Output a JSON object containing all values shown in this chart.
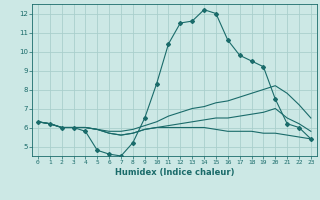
{
  "xlabel": "Humidex (Indice chaleur)",
  "ylabel": "",
  "xlim": [
    -0.5,
    23.5
  ],
  "ylim": [
    4.5,
    12.5
  ],
  "xticks": [
    0,
    1,
    2,
    3,
    4,
    5,
    6,
    7,
    8,
    9,
    10,
    11,
    12,
    13,
    14,
    15,
    16,
    17,
    18,
    19,
    20,
    21,
    22,
    23
  ],
  "yticks": [
    5,
    6,
    7,
    8,
    9,
    10,
    11,
    12
  ],
  "bg_color": "#cce8e5",
  "grid_color": "#aacfcc",
  "line_color": "#1a6b6a",
  "curves": [
    [
      6.3,
      6.2,
      6.0,
      6.0,
      5.8,
      4.8,
      4.6,
      4.5,
      5.2,
      6.5,
      8.3,
      10.4,
      11.5,
      11.6,
      12.2,
      12.0,
      10.6,
      9.8,
      9.5,
      9.2,
      7.5,
      6.2,
      6.0,
      5.4
    ],
    [
      6.3,
      6.2,
      6.0,
      6.0,
      6.0,
      5.9,
      5.8,
      5.8,
      5.9,
      6.1,
      6.3,
      6.6,
      6.8,
      7.0,
      7.1,
      7.3,
      7.4,
      7.6,
      7.8,
      8.0,
      8.2,
      7.8,
      7.2,
      6.5
    ],
    [
      6.3,
      6.2,
      6.0,
      6.0,
      6.0,
      5.9,
      5.7,
      5.6,
      5.7,
      5.9,
      6.0,
      6.1,
      6.2,
      6.3,
      6.4,
      6.5,
      6.5,
      6.6,
      6.7,
      6.8,
      7.0,
      6.5,
      6.2,
      5.8
    ],
    [
      6.3,
      6.2,
      6.0,
      6.0,
      6.0,
      5.9,
      5.7,
      5.6,
      5.7,
      5.9,
      6.0,
      6.0,
      6.0,
      6.0,
      6.0,
      5.9,
      5.8,
      5.8,
      5.8,
      5.7,
      5.7,
      5.6,
      5.5,
      5.4
    ]
  ],
  "dot_curve_idx": 0
}
